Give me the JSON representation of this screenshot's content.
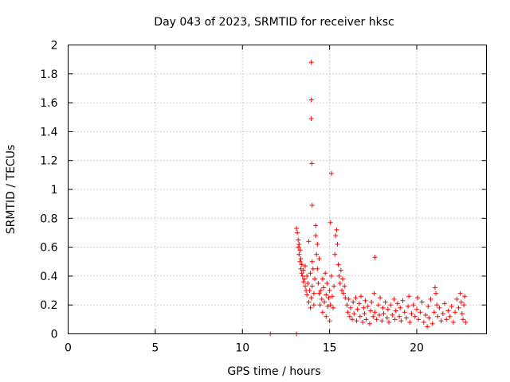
{
  "chart_data": {
    "type": "scatter",
    "title": "Day 043 of 2023, SRMTID for receiver hksc",
    "xlabel": "GPS time / hours",
    "ylabel": "SRMTID / TECUs",
    "xlim": [
      0,
      24
    ],
    "ylim": [
      0,
      2
    ],
    "xticks": [
      0,
      5,
      10,
      15,
      20
    ],
    "xtick_labels": [
      "0",
      "5",
      "10",
      "15",
      "20"
    ],
    "yticks": [
      0,
      0.2,
      0.4,
      0.6,
      0.8,
      1,
      1.2,
      1.4,
      1.6,
      1.8,
      2
    ],
    "ytick_labels": [
      "0",
      "0.2",
      "0.4",
      "0.6",
      "0.8",
      "1",
      "1.2",
      "1.4",
      "1.6",
      "1.8",
      "2"
    ],
    "grid": true,
    "marker": "+",
    "series_color": "#ff0000",
    "series": [
      {
        "name": "SRMTID",
        "points": [
          [
            11.6,
            0.0
          ],
          [
            13.1,
            0.0
          ],
          [
            13.95,
            1.88
          ],
          [
            13.95,
            1.62
          ],
          [
            13.95,
            1.49
          ],
          [
            13.98,
            1.18
          ],
          [
            14.0,
            0.89
          ],
          [
            15.1,
            1.11
          ],
          [
            17.6,
            0.53
          ],
          [
            15.05,
            0.77
          ],
          [
            13.1,
            0.73
          ],
          [
            13.15,
            0.7
          ],
          [
            13.2,
            0.65
          ],
          [
            13.2,
            0.6
          ],
          [
            13.25,
            0.62
          ],
          [
            13.25,
            0.55
          ],
          [
            13.3,
            0.58
          ],
          [
            13.3,
            0.5
          ],
          [
            13.35,
            0.52
          ],
          [
            13.35,
            0.45
          ],
          [
            13.4,
            0.48
          ],
          [
            13.4,
            0.42
          ],
          [
            13.45,
            0.4
          ],
          [
            13.5,
            0.44
          ],
          [
            13.5,
            0.36
          ],
          [
            13.55,
            0.38
          ],
          [
            13.6,
            0.33
          ],
          [
            13.6,
            0.47
          ],
          [
            13.65,
            0.3
          ],
          [
            13.7,
            0.4
          ],
          [
            13.7,
            0.27
          ],
          [
            13.75,
            0.35
          ],
          [
            13.8,
            0.22
          ],
          [
            13.8,
            0.64
          ],
          [
            13.85,
            0.3
          ],
          [
            13.9,
            0.18
          ],
          [
            13.9,
            0.42
          ],
          [
            13.95,
            0.25
          ],
          [
            14.0,
            0.5
          ],
          [
            14.0,
            0.33
          ],
          [
            14.05,
            0.45
          ],
          [
            14.1,
            0.28
          ],
          [
            14.1,
            0.2
          ],
          [
            14.15,
            0.38
          ],
          [
            14.2,
            0.75
          ],
          [
            14.2,
            0.68
          ],
          [
            14.25,
            0.55
          ],
          [
            14.3,
            0.62
          ],
          [
            14.3,
            0.45
          ],
          [
            14.35,
            0.35
          ],
          [
            14.4,
            0.28
          ],
          [
            14.4,
            0.52
          ],
          [
            14.45,
            0.2
          ],
          [
            14.5,
            0.3
          ],
          [
            14.55,
            0.24
          ],
          [
            14.6,
            0.38
          ],
          [
            14.6,
            0.15
          ],
          [
            14.65,
            0.32
          ],
          [
            14.7,
            0.22
          ],
          [
            14.75,
            0.42
          ],
          [
            14.8,
            0.27
          ],
          [
            14.8,
            0.12
          ],
          [
            14.85,
            0.35
          ],
          [
            14.9,
            0.19
          ],
          [
            14.95,
            0.25
          ],
          [
            15.0,
            0.09
          ],
          [
            15.0,
            0.3
          ],
          [
            15.05,
            0.2
          ],
          [
            15.1,
            0.4
          ],
          [
            15.15,
            0.26
          ],
          [
            15.2,
            0.18
          ],
          [
            15.25,
            0.33
          ],
          [
            15.3,
            0.55
          ],
          [
            15.35,
            0.68
          ],
          [
            15.4,
            0.72
          ],
          [
            15.45,
            0.62
          ],
          [
            15.5,
            0.48
          ],
          [
            15.55,
            0.4
          ],
          [
            15.6,
            0.35
          ],
          [
            15.65,
            0.44
          ],
          [
            15.7,
            0.3
          ],
          [
            15.75,
            0.38
          ],
          [
            15.8,
            0.28
          ],
          [
            15.85,
            0.33
          ],
          [
            15.9,
            0.25
          ],
          [
            16.0,
            0.2
          ],
          [
            16.05,
            0.15
          ],
          [
            16.1,
            0.24
          ],
          [
            16.15,
            0.12
          ],
          [
            16.2,
            0.18
          ],
          [
            16.3,
            0.1
          ],
          [
            16.35,
            0.22
          ],
          [
            16.4,
            0.14
          ],
          [
            16.5,
            0.25
          ],
          [
            16.55,
            0.09
          ],
          [
            16.6,
            0.17
          ],
          [
            16.7,
            0.21
          ],
          [
            16.75,
            0.12
          ],
          [
            16.8,
            0.26
          ],
          [
            16.9,
            0.08
          ],
          [
            16.95,
            0.18
          ],
          [
            17.0,
            0.14
          ],
          [
            17.05,
            0.23
          ],
          [
            17.1,
            0.1
          ],
          [
            17.2,
            0.19
          ],
          [
            17.3,
            0.07
          ],
          [
            17.35,
            0.16
          ],
          [
            17.4,
            0.22
          ],
          [
            17.5,
            0.12
          ],
          [
            17.55,
            0.28
          ],
          [
            17.6,
            0.15
          ],
          [
            17.7,
            0.1
          ],
          [
            17.8,
            0.2
          ],
          [
            17.85,
            0.13
          ],
          [
            17.9,
            0.25
          ],
          [
            18.0,
            0.09
          ],
          [
            18.05,
            0.18
          ],
          [
            18.1,
            0.14
          ],
          [
            18.2,
            0.22
          ],
          [
            18.3,
            0.11
          ],
          [
            18.35,
            0.17
          ],
          [
            18.4,
            0.08
          ],
          [
            18.5,
            0.2
          ],
          [
            18.6,
            0.13
          ],
          [
            18.7,
            0.24
          ],
          [
            18.75,
            0.1
          ],
          [
            18.8,
            0.16
          ],
          [
            18.9,
            0.21
          ],
          [
            19.0,
            0.12
          ],
          [
            19.05,
            0.18
          ],
          [
            19.1,
            0.09
          ],
          [
            19.2,
            0.23
          ],
          [
            19.3,
            0.15
          ],
          [
            19.4,
            0.11
          ],
          [
            19.5,
            0.19
          ],
          [
            19.55,
            0.26
          ],
          [
            19.6,
            0.08
          ],
          [
            19.7,
            0.14
          ],
          [
            19.8,
            0.2
          ],
          [
            19.9,
            0.12
          ],
          [
            20.0,
            0.17
          ],
          [
            20.05,
            0.25
          ],
          [
            20.1,
            0.1
          ],
          [
            20.2,
            0.15
          ],
          [
            20.3,
            0.22
          ],
          [
            20.4,
            0.08
          ],
          [
            20.5,
            0.13
          ],
          [
            20.6,
            0.05
          ],
          [
            20.65,
            0.19
          ],
          [
            20.7,
            0.11
          ],
          [
            20.8,
            0.24
          ],
          [
            20.9,
            0.07
          ],
          [
            21.0,
            0.15
          ],
          [
            21.05,
            0.32
          ],
          [
            21.1,
            0.28
          ],
          [
            21.15,
            0.2
          ],
          [
            21.2,
            0.12
          ],
          [
            21.3,
            0.18
          ],
          [
            21.4,
            0.09
          ],
          [
            21.5,
            0.14
          ],
          [
            21.6,
            0.21
          ],
          [
            21.7,
            0.1
          ],
          [
            21.8,
            0.16
          ],
          [
            21.9,
            0.12
          ],
          [
            22.0,
            0.19
          ],
          [
            22.1,
            0.08
          ],
          [
            22.2,
            0.15
          ],
          [
            22.3,
            0.24
          ],
          [
            22.4,
            0.18
          ],
          [
            22.5,
            0.28
          ],
          [
            22.55,
            0.22
          ],
          [
            22.6,
            0.14
          ],
          [
            22.65,
            0.1
          ],
          [
            22.7,
            0.2
          ],
          [
            22.75,
            0.26
          ],
          [
            22.8,
            0.08
          ]
        ]
      }
    ]
  }
}
